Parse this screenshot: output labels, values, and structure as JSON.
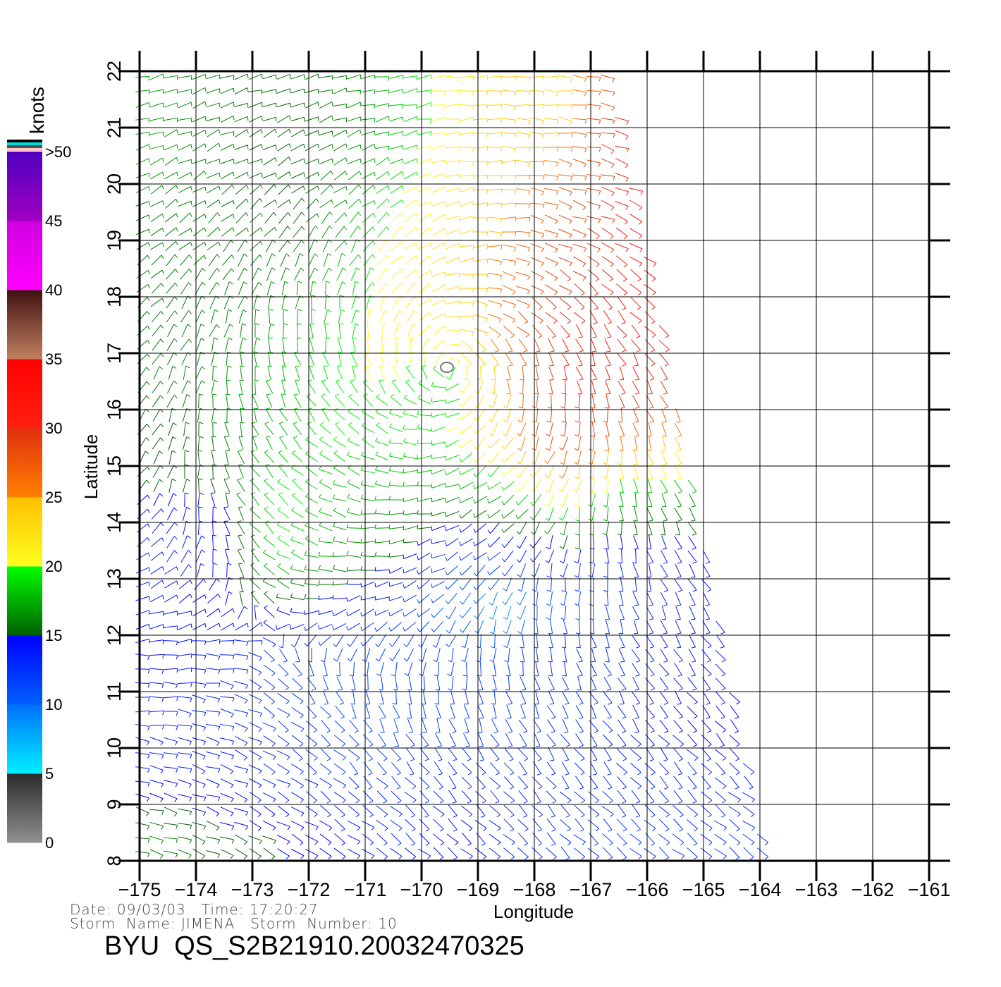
{
  "chart_data": {
    "type": "vector-field",
    "xlabel": "Longitude",
    "ylabel": "Latitude",
    "xlim": [
      -175,
      -161
    ],
    "ylim": [
      8,
      22
    ],
    "xticks": [
      "-175",
      "-174",
      "-173",
      "-172",
      "-171",
      "-170",
      "-169",
      "-168",
      "-167",
      "-166",
      "-165",
      "-164",
      "-163",
      "-162",
      "-161"
    ],
    "yticks": [
      "8",
      "9",
      "10",
      "11",
      "12",
      "13",
      "14",
      "15",
      "16",
      "17",
      "18",
      "19",
      "20",
      "21",
      "22"
    ],
    "grid": true,
    "colorbar": {
      "label": "knots",
      "placement": "left",
      "tick_labels": [
        "0",
        "5",
        "10",
        "15",
        "20",
        "25",
        "30",
        "35",
        "40",
        "45",
        ">50"
      ],
      "bands": [
        {
          "range": [
            0,
            5
          ],
          "from": "#909090",
          "to": "#2a2a2a"
        },
        {
          "range": [
            5,
            10
          ],
          "from": "#00f0ff",
          "to": "#0070ff"
        },
        {
          "range": [
            10,
            15
          ],
          "from": "#0060ff",
          "to": "#0000ff"
        },
        {
          "range": [
            15,
            20
          ],
          "from": "#006000",
          "to": "#00ff00"
        },
        {
          "range": [
            20,
            25
          ],
          "from": "#ffff20",
          "to": "#ffc000"
        },
        {
          "range": [
            25,
            30
          ],
          "from": "#ff8000",
          "to": "#e03010"
        },
        {
          "range": [
            30,
            35
          ],
          "from": "#ff2010",
          "to": "#ff0000"
        },
        {
          "range": [
            35,
            40
          ],
          "from": "#c08060",
          "to": "#401010"
        },
        {
          "range": [
            40,
            45
          ],
          "from": "#ff00ff",
          "to": "#d000e0"
        },
        {
          "range": [
            45,
            50
          ],
          "from": "#a000c0",
          "to": "#5000c0"
        }
      ],
      "top_swatches": [
        "#ffc8c8",
        "#505050",
        "#00e0e0",
        "#000000"
      ]
    },
    "wind_speed_knots_grid": {
      "lat_centers": [
        21.5,
        20.5,
        19.5,
        18.5,
        17.5,
        16.5,
        15.5,
        14.5,
        13.5,
        12.5,
        11.5,
        10.5,
        9.5,
        8.5
      ],
      "lon_centers": [
        -174.5,
        -173.5,
        -172.5,
        -171.5,
        -170.5,
        -169.5,
        -168.5,
        -167.5,
        -166.5,
        -165.5,
        -164.5,
        -163.5
      ],
      "values": [
        [
          17,
          16,
          15,
          16,
          18,
          21,
          24,
          23,
          30,
          null,
          null,
          null
        ],
        [
          17,
          16,
          15,
          16,
          18,
          22,
          24,
          26,
          30,
          null,
          null,
          null
        ],
        [
          16,
          16,
          15,
          17,
          20,
          22,
          25,
          28,
          30,
          32,
          null,
          null
        ],
        [
          16,
          16,
          16,
          18,
          21,
          23,
          26,
          29,
          30,
          32,
          null,
          null
        ],
        [
          16,
          16,
          17,
          19,
          21,
          22,
          27,
          30,
          31,
          31,
          null,
          null
        ],
        [
          16,
          17,
          18,
          20,
          20,
          19,
          25,
          30,
          31,
          30,
          30,
          null
        ],
        [
          15,
          16,
          18,
          20,
          19,
          20,
          24,
          30,
          27,
          25,
          22,
          null
        ],
        [
          15,
          15,
          20,
          18,
          18,
          17,
          18,
          22,
          18,
          17,
          17,
          null
        ],
        [
          13,
          14,
          20,
          17,
          16,
          12,
          13,
          14,
          14,
          14,
          14,
          null
        ],
        [
          14,
          15,
          15,
          14,
          12,
          10,
          8,
          11,
          12,
          13,
          14,
          null
        ],
        [
          14,
          13,
          12,
          11,
          12,
          12,
          12,
          13,
          13,
          13,
          14,
          15
        ],
        [
          13,
          13,
          12,
          11,
          11,
          12,
          12,
          12,
          13,
          14,
          15,
          15
        ],
        [
          14,
          14,
          13,
          12,
          12,
          13,
          12,
          13,
          13,
          13,
          13,
          14
        ],
        [
          16,
          15,
          15,
          14,
          13,
          14,
          13,
          12,
          12,
          12,
          12,
          12
        ]
      ]
    },
    "swath_east_edge": [
      [
        -166.6,
        22
      ],
      [
        -163.85,
        8
      ]
    ],
    "storm_center_marker": [
      -169.55,
      16.75
    ]
  },
  "footer": {
    "date_line": "Date: 09/03/03   Time: 17:20:27",
    "storm_line": "Storm  Name: JIMENA   Storm  Number: 10",
    "title": "BYU  QS_S2B21910.20032470325"
  }
}
